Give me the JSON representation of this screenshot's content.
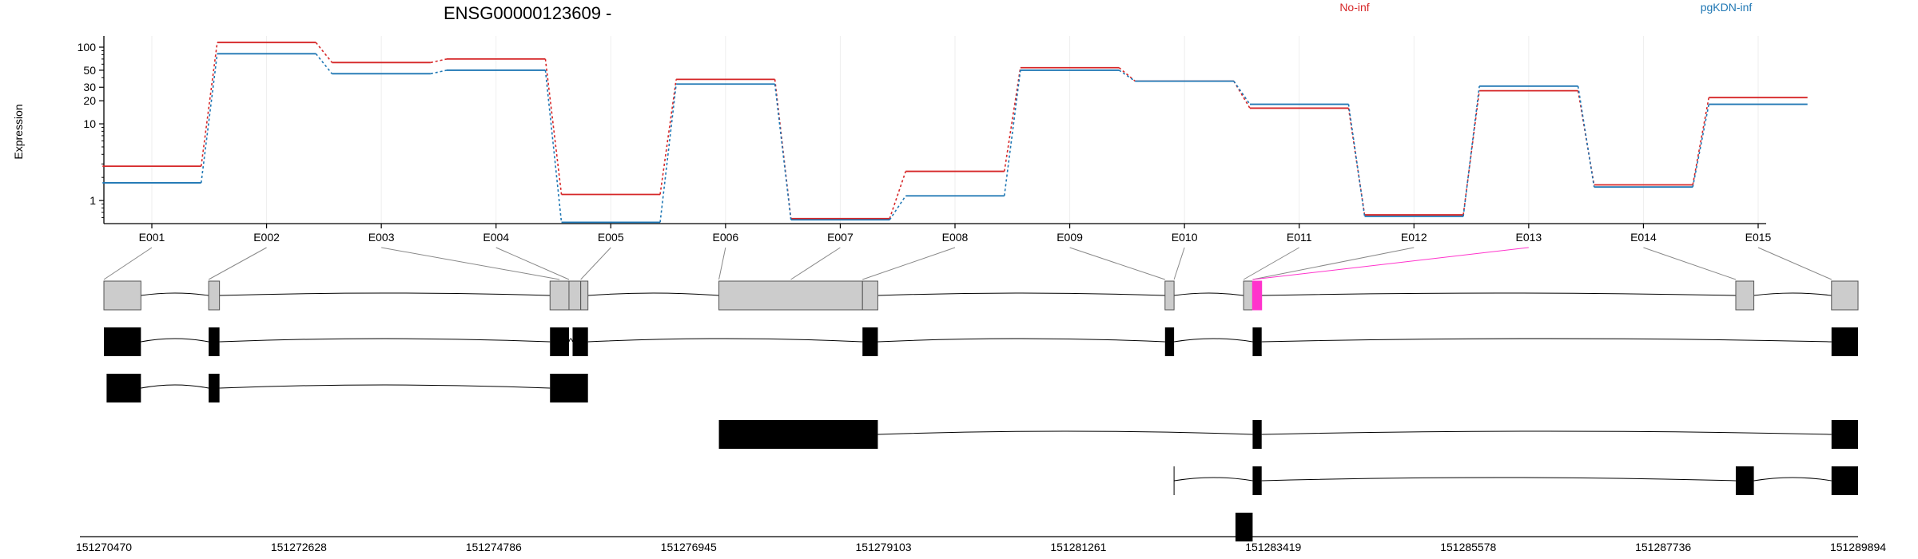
{
  "chart_data": {
    "type": "line",
    "title": "ENSG00000123609 -",
    "ylabel": "Expression",
    "xlabel": "",
    "y_scale": "log",
    "ylim": [
      0.5,
      140
    ],
    "yticks": [
      1,
      10,
      20,
      30,
      50,
      100
    ],
    "grid": true,
    "legend_placement": "top-right",
    "categories": [
      "E001",
      "E002",
      "E003",
      "E004",
      "E005",
      "E006",
      "E007",
      "E008",
      "E009",
      "E010",
      "E011",
      "E012",
      "E013",
      "E014",
      "E015"
    ],
    "series": [
      {
        "name": "No-inf",
        "color": "#d62728",
        "values": [
          2.8,
          115,
          63,
          70,
          1.2,
          38,
          0.58,
          2.4,
          54,
          36,
          16,
          0.65,
          27,
          1.6,
          22
        ]
      },
      {
        "name": "pgKDN-inf",
        "color": "#1f77b4",
        "values": [
          1.7,
          82,
          45,
          50,
          0.52,
          33,
          0.56,
          1.15,
          50,
          36,
          18,
          0.62,
          31,
          1.5,
          18
        ]
      }
    ],
    "gene_model": {
      "start": 151270470,
      "end": 151289894,
      "coord_ticks": [
        "151270470",
        "151272628",
        "151274786",
        "151276945",
        "151279103",
        "151281261",
        "151283419",
        "151285578",
        "151287736",
        "151289894"
      ],
      "highlight_color": "#ff33cc",
      "exons": [
        [
          151270470,
          151270880
        ],
        [
          151271630,
          151271750
        ],
        [
          151275410,
          151275620
        ],
        [
          151275620,
          151275750
        ],
        [
          151275750,
          151275830
        ],
        [
          151277280,
          151278870
        ],
        [
          151278870,
          151279040
        ],
        [
          151282220,
          151282320
        ],
        [
          151283090,
          151283190
        ],
        [
          151283190,
          151283290
        ],
        [
          151288540,
          151288740
        ],
        [
          151289600,
          151289894
        ]
      ],
      "highlight_exon": 9,
      "transcripts": [
        {
          "exons": [
            [
              151270470,
              151270880
            ],
            [
              151271630,
              151271750
            ],
            [
              151275410,
              151275620
            ],
            [
              151275660,
              151275830
            ],
            [
              151278870,
              151279040
            ],
            [
              151282220,
              151282320
            ],
            [
              151283190,
              151283290
            ],
            [
              151289600,
              151289894
            ]
          ]
        },
        {
          "exons": [
            [
              151270500,
              151270880
            ],
            [
              151271630,
              151271750
            ],
            [
              151275410,
              151275830
            ]
          ]
        },
        {
          "exons": [
            [
              151277280,
              151279040
            ],
            [
              151283190,
              151283290
            ],
            [
              151289600,
              151289894
            ]
          ]
        },
        {
          "exons": [
            [
              151282320,
              151282322
            ],
            [
              151283190,
              151283290
            ],
            [
              151288540,
              151288740
            ],
            [
              151289600,
              151289894
            ]
          ]
        },
        {
          "exons": [
            [
              151283000,
              151283190
            ]
          ]
        }
      ]
    }
  }
}
